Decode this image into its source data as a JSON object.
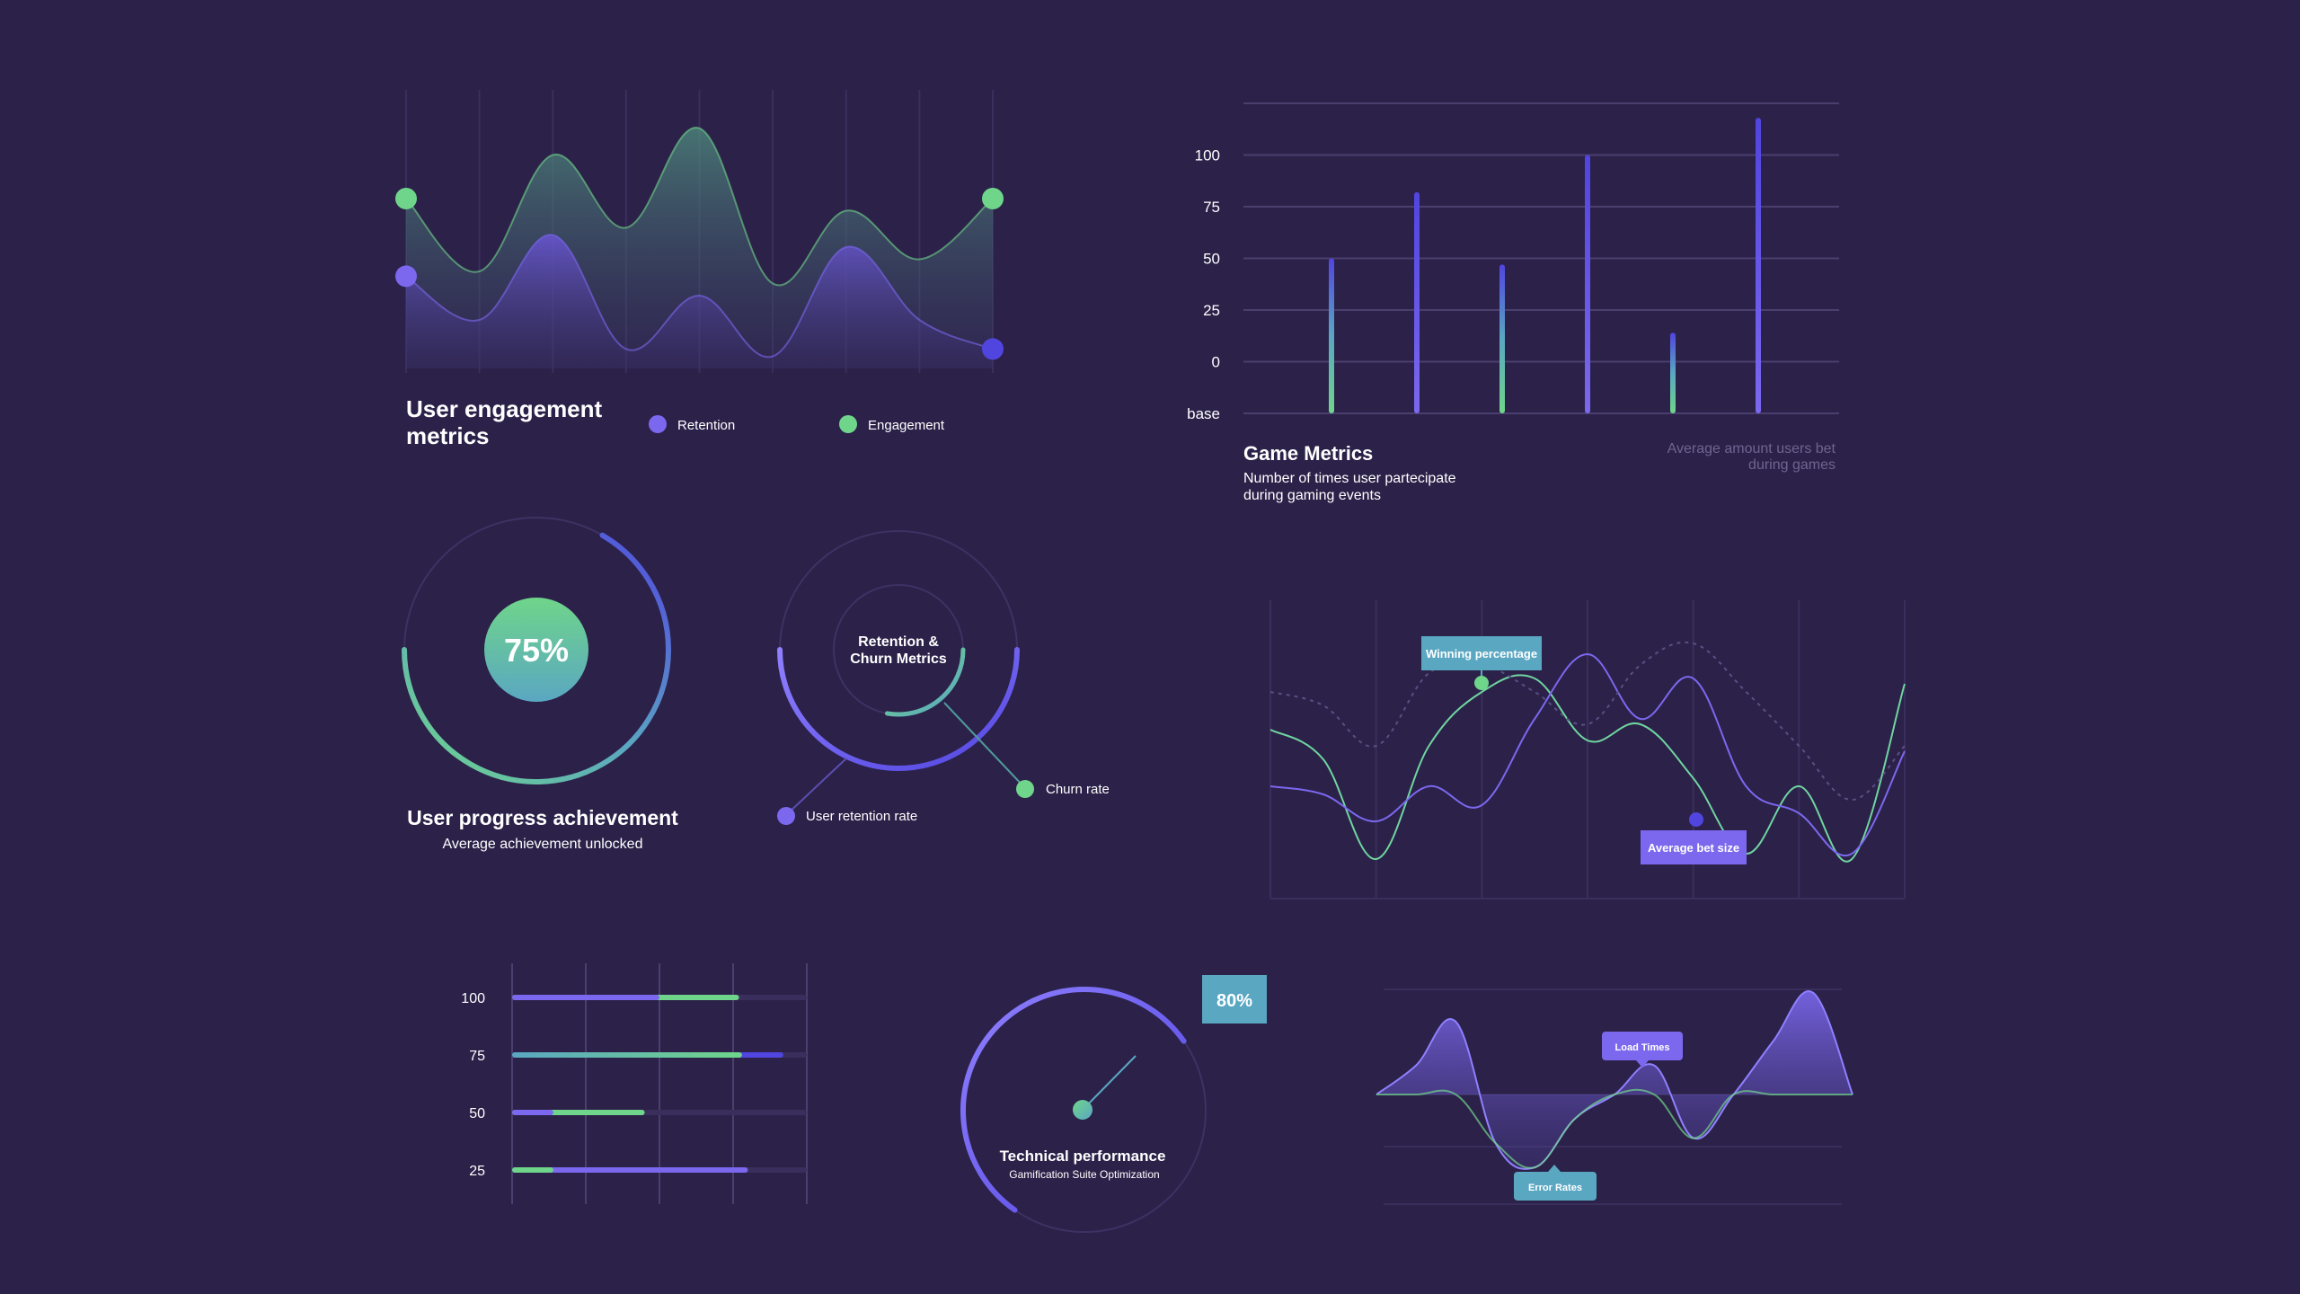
{
  "colors": {
    "background": "#2c2149",
    "purple": "#7b68ee",
    "indigo": "#5145e0",
    "green": "#6fd58a",
    "teal": "#5aa7c2",
    "grid": "#4a3f6e",
    "muted_text": "#6e6590"
  },
  "engagement": {
    "title_line1": "User engagement",
    "title_line2": "metrics",
    "legend": [
      {
        "label": "Retention",
        "color": "#7b68ee"
      },
      {
        "label": "Engagement",
        "color": "#6fd58a"
      }
    ]
  },
  "game_metrics": {
    "title": "Game Metrics",
    "subtitle_line1": "Number of times user partecipate",
    "subtitle_line2": "during gaming events",
    "note_line1": "Average amount users bet",
    "note_line2": "during games"
  },
  "progress": {
    "value_label": "75%",
    "title": "User progress achievement",
    "subtitle": "Average achievement unlocked"
  },
  "retention_churn": {
    "center_line1": "Retention &",
    "center_line2": "Churn Metrics",
    "churn_label": "Churn rate",
    "retention_label": "User retention rate"
  },
  "winning": {
    "tag_winning": "Winning percentage",
    "tag_bet": "Average bet size"
  },
  "technical": {
    "badge": "80%",
    "title": "Technical performance",
    "subtitle": "Gamification Suite Optimization"
  },
  "load_error": {
    "tag_load": "Load Times",
    "tag_error": "Error Rates"
  },
  "chart_data": [
    {
      "type": "area",
      "id": "engagement",
      "x": [
        0,
        1,
        2,
        3,
        4,
        5,
        6,
        7,
        8
      ],
      "series": [
        {
          "name": "Engagement",
          "values": [
            70,
            40,
            88,
            58,
            99,
            35,
            65,
            45,
            70
          ]
        },
        {
          "name": "Retention",
          "values": [
            38,
            20,
            55,
            8,
            30,
            5,
            50,
            20,
            8
          ]
        }
      ],
      "ylim": [
        0,
        100
      ]
    },
    {
      "type": "bar",
      "id": "game-metrics",
      "yticks": [
        "base",
        "0",
        "25",
        "50",
        "75",
        "100"
      ],
      "values": [
        50,
        82,
        47,
        100,
        14,
        118
      ],
      "ylim": [
        -25,
        125
      ]
    },
    {
      "type": "pie",
      "id": "user-progress",
      "values": [
        75
      ]
    },
    {
      "type": "pie",
      "id": "retention-churn",
      "series": [
        {
          "name": "User retention rate",
          "values": [
            65
          ]
        },
        {
          "name": "Churn rate",
          "values": [
            45
          ]
        }
      ]
    },
    {
      "type": "line",
      "id": "winning-bet",
      "x": [
        0,
        1,
        2,
        3,
        4,
        5,
        6,
        7,
        8,
        9,
        10,
        11,
        12
      ],
      "series": [
        {
          "name": "Winning percentage",
          "values": [
            56,
            45,
            8,
            50,
            70,
            75,
            52,
            58,
            38,
            10,
            35,
            8,
            73
          ]
        },
        {
          "name": "Average bet size",
          "values": [
            35,
            32,
            22,
            35,
            28,
            60,
            84,
            60,
            75,
            35,
            25,
            10,
            48
          ]
        },
        {
          "name": "",
          "values": [
            70,
            65,
            50,
            77,
            80,
            70,
            58,
            80,
            88,
            70,
            50,
            30,
            50
          ]
        }
      ],
      "ylim": [
        0,
        100
      ]
    },
    {
      "type": "bar",
      "id": "horizontal-bars",
      "categories": [
        "100",
        "75",
        "50",
        "25"
      ],
      "series": [
        {
          "name": "purple",
          "values": [
            50,
            0,
            14,
            80
          ]
        },
        {
          "name": "teal",
          "values": [
            0,
            78,
            0,
            0
          ]
        },
        {
          "name": "green",
          "values": [
            77,
            78,
            45,
            14
          ]
        }
      ],
      "xlim": [
        0,
        100
      ]
    },
    {
      "type": "pie",
      "id": "technical-performance",
      "values": [
        80
      ]
    },
    {
      "type": "area",
      "id": "load-error",
      "x": [
        0,
        1,
        2,
        3,
        4,
        5,
        6,
        7,
        8,
        9,
        10,
        11,
        12
      ],
      "series": [
        {
          "name": "Load Times",
          "values": [
            0,
            12,
            30,
            0,
            0,
            0,
            0,
            12,
            0,
            0,
            22,
            42,
            0
          ]
        },
        {
          "name": "Error Rates",
          "values": [
            0,
            0,
            0,
            -20,
            -30,
            -10,
            0,
            0,
            -18,
            0,
            0,
            0,
            0
          ]
        }
      ],
      "ylim": [
        -40,
        45
      ]
    }
  ]
}
